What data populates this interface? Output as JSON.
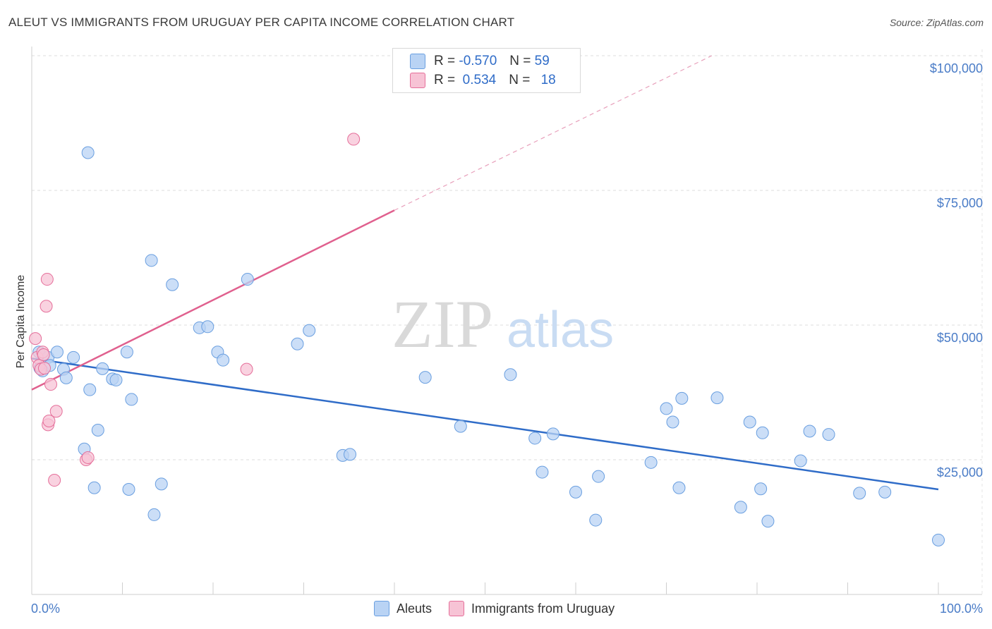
{
  "title": "ALEUT VS IMMIGRANTS FROM URUGUAY PER CAPITA INCOME CORRELATION CHART",
  "source": "Source: ZipAtlas.com",
  "watermark": {
    "zip": "ZIP",
    "atlas": "atlas"
  },
  "legend": {
    "rows": [
      {
        "r_label": "R =",
        "r_value": "-0.570",
        "n_label": "N =",
        "n_value": "59"
      },
      {
        "r_label": "R =",
        "r_value": " 0.534",
        "n_label": "N =",
        "n_value": "18"
      }
    ]
  },
  "bottom_legend": {
    "aleuts": "Aleuts",
    "uruguay": "Immigrants from Uruguay"
  },
  "colors": {
    "aleuts": "#6a9fe0",
    "aleuts_fill": "#b9d3f4",
    "uruguay": "#e56f9a",
    "uruguay_fill": "#f7c3d5",
    "tick": "#4a7cc7"
  },
  "chart_data": {
    "type": "scatter",
    "title": "ALEUT VS IMMIGRANTS FROM URUGUAY PER CAPITA INCOME CORRELATION CHART",
    "xlabel": "",
    "ylabel": "Per Capita Income",
    "x_tick_labels": [
      "0.0%",
      "100.0%"
    ],
    "y_tick_labels": [
      "$25,000",
      "$50,000",
      "$75,000",
      "$100,000"
    ],
    "y_ticks": [
      25000,
      50000,
      75000,
      100000
    ],
    "xlim": [
      0,
      100
    ],
    "ylim": [
      0,
      102500
    ],
    "grid": true,
    "legend_position": "top-center",
    "series": [
      {
        "name": "Aleuts",
        "points": [
          [
            0.8,
            45000
          ],
          [
            0.9,
            42000
          ],
          [
            1.2,
            41500
          ],
          [
            1.8,
            44000
          ],
          [
            2.0,
            42500
          ],
          [
            2.8,
            45000
          ],
          [
            3.5,
            41800
          ],
          [
            3.8,
            40200
          ],
          [
            4.6,
            44000
          ],
          [
            6.2,
            82000
          ],
          [
            5.8,
            27000
          ],
          [
            6.4,
            38000
          ],
          [
            6.9,
            19800
          ],
          [
            7.3,
            30500
          ],
          [
            7.8,
            41900
          ],
          [
            8.9,
            40000
          ],
          [
            9.3,
            39800
          ],
          [
            10.5,
            45000
          ],
          [
            10.7,
            19500
          ],
          [
            11.0,
            36200
          ],
          [
            13.2,
            62000
          ],
          [
            13.5,
            14800
          ],
          [
            14.3,
            20500
          ],
          [
            15.5,
            57500
          ],
          [
            18.5,
            49500
          ],
          [
            19.4,
            49700
          ],
          [
            20.5,
            45000
          ],
          [
            21.1,
            43500
          ],
          [
            23.8,
            58500
          ],
          [
            29.3,
            46500
          ],
          [
            30.6,
            49000
          ],
          [
            34.3,
            25800
          ],
          [
            35.1,
            26000
          ],
          [
            43.4,
            40300
          ],
          [
            47.3,
            31200
          ],
          [
            52.8,
            40800
          ],
          [
            55.5,
            29000
          ],
          [
            56.3,
            22700
          ],
          [
            57.5,
            29800
          ],
          [
            60.0,
            19000
          ],
          [
            62.2,
            13800
          ],
          [
            62.5,
            21900
          ],
          [
            68.3,
            24500
          ],
          [
            70.0,
            34500
          ],
          [
            70.7,
            32000
          ],
          [
            71.4,
            19800
          ],
          [
            71.7,
            36400
          ],
          [
            75.6,
            36500
          ],
          [
            78.2,
            16200
          ],
          [
            79.2,
            32000
          ],
          [
            80.4,
            19600
          ],
          [
            80.6,
            30000
          ],
          [
            81.2,
            13600
          ],
          [
            84.8,
            24800
          ],
          [
            85.8,
            30300
          ],
          [
            87.9,
            29700
          ],
          [
            91.3,
            18800
          ],
          [
            94.1,
            19000
          ],
          [
            100.0,
            10100
          ]
        ]
      },
      {
        "name": "Immigrants from Uruguay",
        "points": [
          [
            0.4,
            47500
          ],
          [
            0.6,
            44000
          ],
          [
            0.8,
            42500
          ],
          [
            1.0,
            41800
          ],
          [
            1.2,
            45000
          ],
          [
            1.3,
            44500
          ],
          [
            1.4,
            42000
          ],
          [
            1.6,
            53500
          ],
          [
            1.7,
            58500
          ],
          [
            1.8,
            31500
          ],
          [
            1.9,
            32200
          ],
          [
            2.1,
            39000
          ],
          [
            2.5,
            21200
          ],
          [
            2.7,
            34000
          ],
          [
            6.0,
            25000
          ],
          [
            6.2,
            25400
          ],
          [
            23.7,
            41800
          ],
          [
            35.5,
            84500
          ]
        ]
      }
    ],
    "trend_lines": [
      {
        "series": "Aleuts",
        "from": [
          0,
          43800
        ],
        "to": [
          100,
          19500
        ]
      },
      {
        "series": "Immigrants from Uruguay",
        "from": [
          0,
          38000
        ],
        "to": [
          40,
          71300
        ],
        "dashed_to": [
          75,
          100000
        ]
      }
    ]
  }
}
